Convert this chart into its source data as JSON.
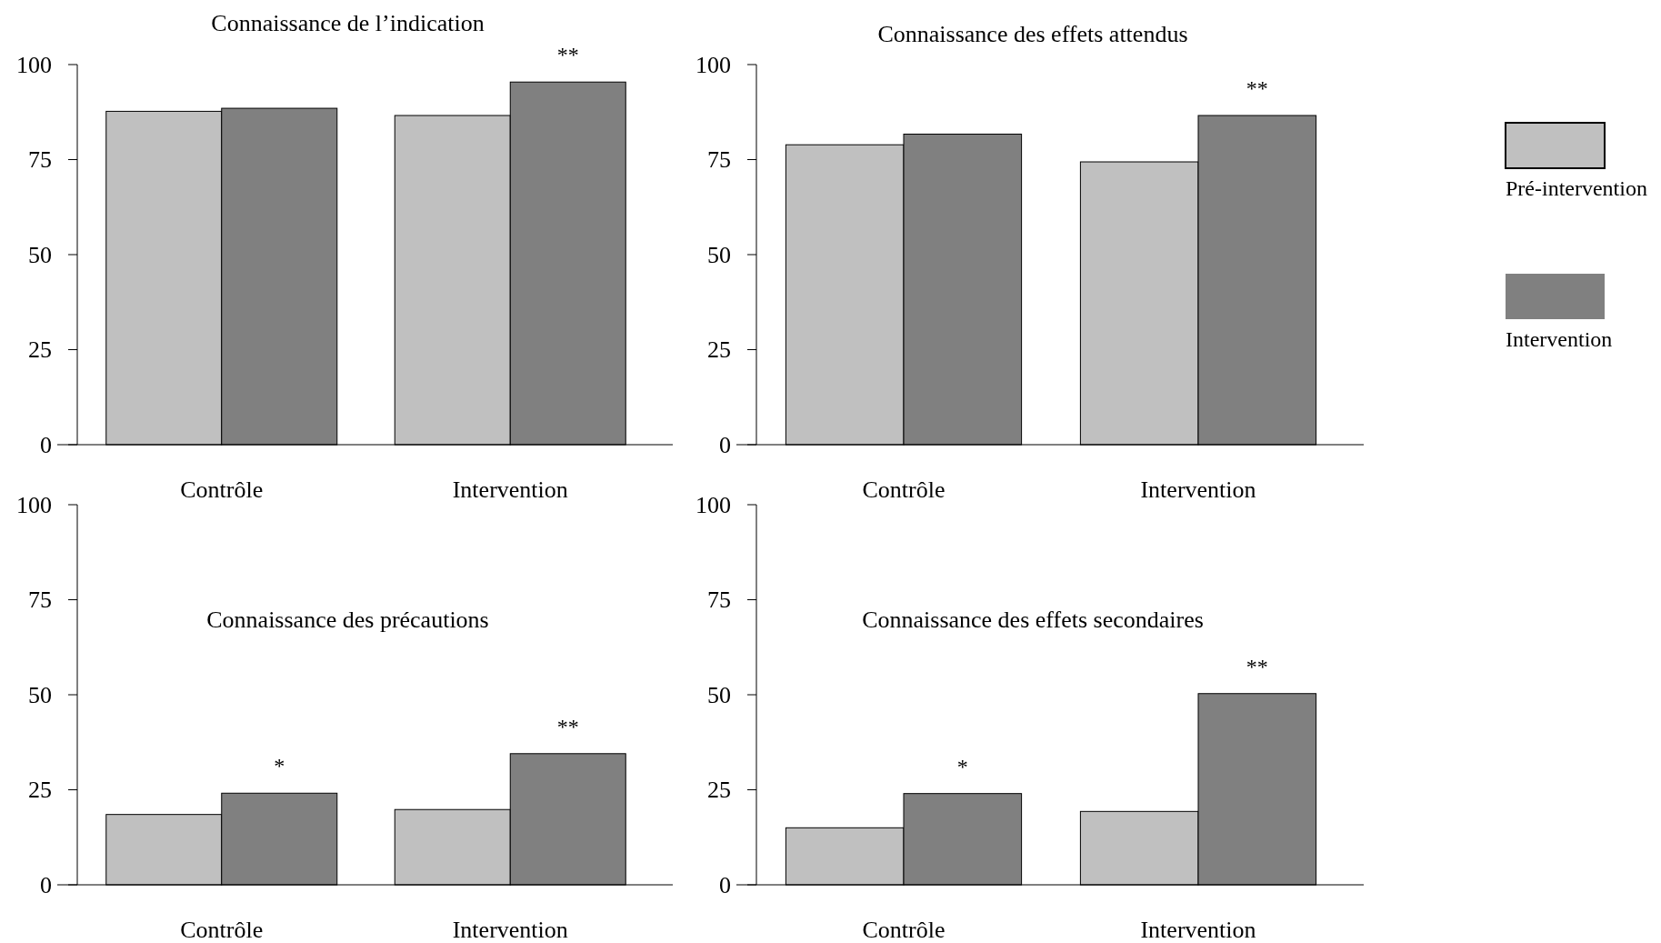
{
  "chart_data": [
    {
      "type": "bar",
      "title": "Connaissance de l’indication",
      "categories": [
        "Contrôle",
        "Intervention"
      ],
      "series": [
        {
          "color": "#c0c0c0",
          "values": [
            87.7,
            86.6
          ]
        },
        {
          "color": "#808080",
          "values": [
            88.5,
            95.4
          ]
        }
      ],
      "ylim": [
        0,
        100
      ],
      "yticks": [
        0,
        25,
        50,
        75,
        100
      ],
      "grid": false,
      "legend": false,
      "annotations": [
        {
          "text": "**",
          "x": "Intervention",
          "y": 95.4
        }
      ]
    },
    {
      "type": "bar",
      "title": "Connaissance des effets attendus",
      "categories": [
        "Contrôle",
        "Intervention"
      ],
      "series": [
        {
          "name": "Pré-intervention",
          "color": "#c0c0c0",
          "values": [
            78.9,
            74.4
          ]
        },
        {
          "name": "Intervention",
          "color": "#808080",
          "values": [
            81.7,
            86.6
          ]
        }
      ],
      "ylim": [
        0,
        100
      ],
      "yticks": [
        0,
        25,
        50,
        75,
        100
      ],
      "grid": false,
      "legend": "right",
      "annotations": [
        {
          "text": "**",
          "x": "Intervention",
          "y": 86.6
        }
      ]
    },
    {
      "type": "bar",
      "title": "Connaissance des précautions",
      "categories": [
        "Contrôle",
        "Intervention"
      ],
      "series": [
        {
          "color": "#c0c0c0",
          "values": [
            18.5,
            19.8
          ]
        },
        {
          "color": "#808080",
          "values": [
            24.1,
            34.5
          ]
        }
      ],
      "ylim": [
        0,
        100
      ],
      "yticks": [
        0,
        25,
        50,
        75,
        100
      ],
      "grid": false,
      "legend": false,
      "annotations": [
        {
          "text": "*",
          "x": "Contrôle",
          "y": 24.1
        },
        {
          "text": "**",
          "x": "Intervention",
          "y": 34.5
        }
      ]
    },
    {
      "type": "bar",
      "title": "Connaissance des effets secondaires",
      "categories": [
        "Contrôle",
        "Intervention"
      ],
      "series": [
        {
          "color": "#c0c0c0",
          "values": [
            15.0,
            19.3
          ]
        },
        {
          "color": "#808080",
          "values": [
            24.0,
            50.3
          ]
        }
      ],
      "ylim": [
        0,
        100
      ],
      "yticks": [
        0,
        25,
        50,
        75,
        100
      ],
      "grid": false,
      "legend": false,
      "annotations": [
        {
          "text": "*",
          "x": "Contrôle",
          "y": 24.0
        },
        {
          "text": "**",
          "x": "Intervention",
          "y": 50.3
        }
      ]
    }
  ]
}
